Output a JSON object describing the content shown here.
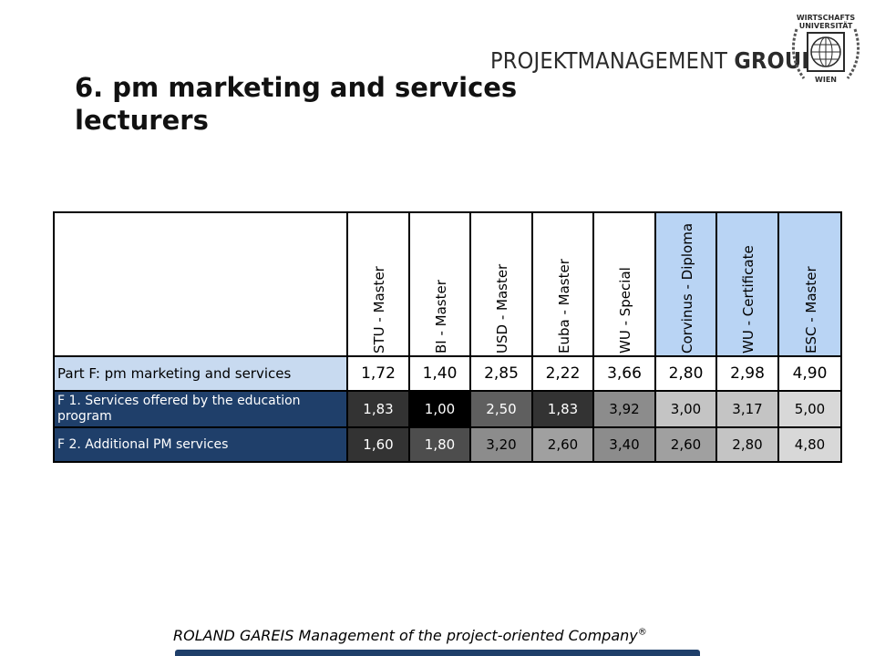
{
  "logo": {
    "word1": "PROJEKTMANAGEMENT",
    "word2": "GROUP",
    "seal_top": "WIRTSCHAFTS",
    "seal_mid": "UNIVERSITÄT",
    "seal_bottom": "WIEN"
  },
  "title": {
    "line1": "6. pm marketing and services",
    "line2": "lecturers"
  },
  "table": {
    "columns": [
      "STU - Master",
      "BI - Master",
      "USD - Master",
      "Euba - Master",
      "WU - Special",
      "Corvinus - Diploma",
      "WU - Certificate",
      "ESC - Master"
    ],
    "rows": [
      {
        "label": "Part F: pm marketing and services",
        "values": [
          "1,72",
          "1,40",
          "2,85",
          "2,22",
          "3,66",
          "2,80",
          "2,98",
          "4,90"
        ]
      },
      {
        "label": "F 1. Services offered by the education program",
        "values": [
          "1,83",
          "1,00",
          "2,50",
          "1,83",
          "3,92",
          "3,00",
          "3,17",
          "5,00"
        ]
      },
      {
        "label": "F 2. Additional PM services",
        "values": [
          "1,60",
          "1,80",
          "3,20",
          "2,60",
          "3,40",
          "2,60",
          "2,80",
          "4,80"
        ]
      }
    ]
  },
  "footer": {
    "text": "ROLAND GAREIS Management of the project-oriented Company",
    "mark": "®"
  }
}
